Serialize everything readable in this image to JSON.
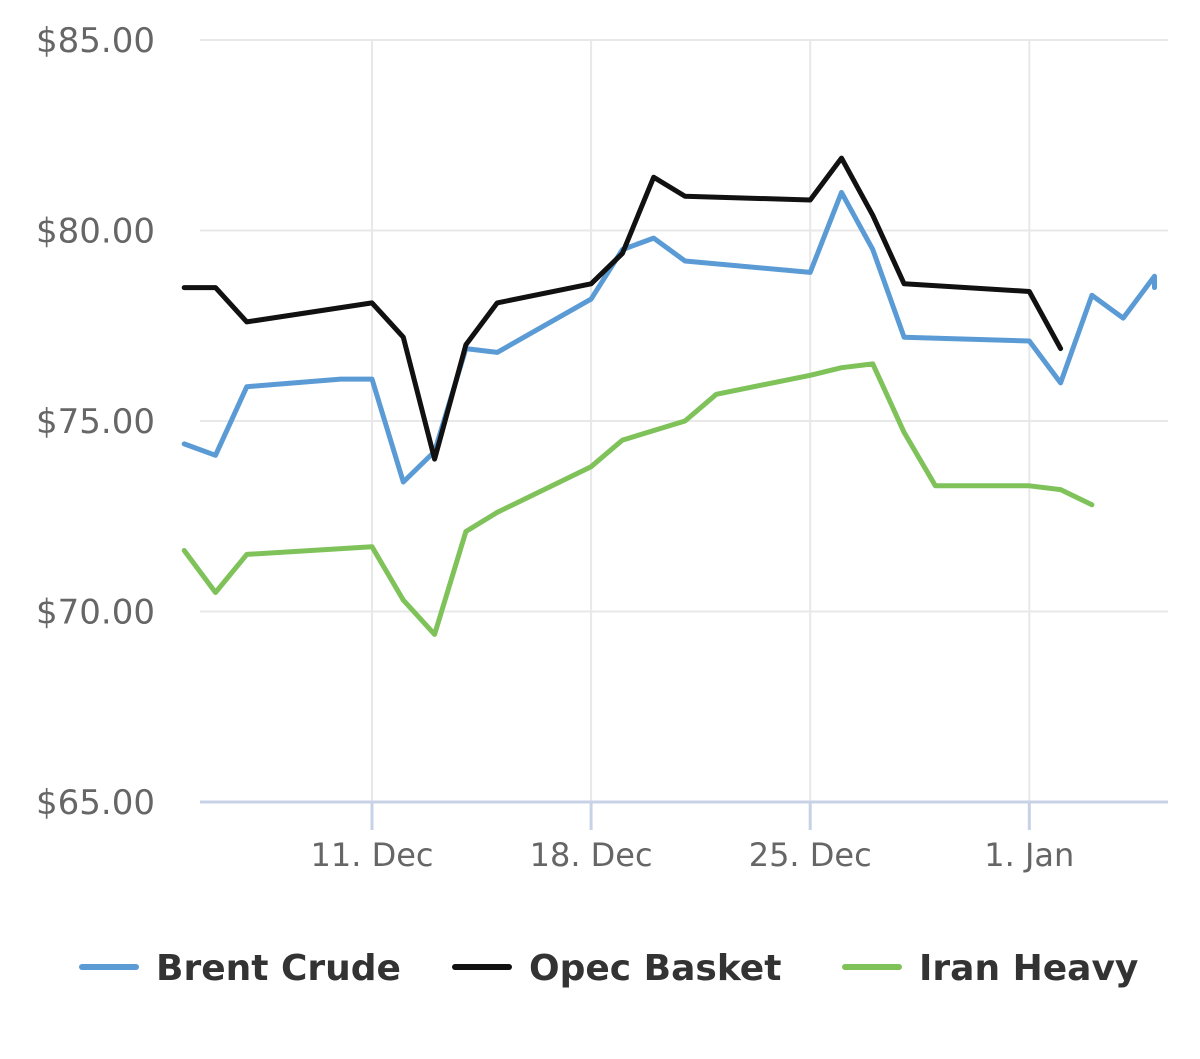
{
  "chart_data": {
    "type": "line",
    "title": "",
    "xlabel": "",
    "ylabel": "",
    "ylim": [
      65,
      85
    ],
    "y_ticks": [
      85,
      80,
      75,
      70,
      65
    ],
    "y_tick_labels": [
      "$85.00",
      "$80.00",
      "$75.00",
      "$70.00",
      "$65.00"
    ],
    "x_range": [
      "2017-12-05",
      "2018-01-04"
    ],
    "x_ticks": [
      "2017-12-11",
      "2017-12-18",
      "2017-12-25",
      "2018-01-01"
    ],
    "x_tick_labels": [
      "11. Dec",
      "18. Dec",
      "25. Dec",
      "1. Jan"
    ],
    "grid": true,
    "legend_position": "bottom",
    "series": [
      {
        "name": "Brent Crude",
        "color": "#5b9bd5",
        "points": [
          [
            "2017-12-05",
            74.4
          ],
          [
            "2017-12-06",
            74.1
          ],
          [
            "2017-12-07",
            75.9
          ],
          [
            "2017-12-10",
            76.1
          ],
          [
            "2017-12-11",
            76.1
          ],
          [
            "2017-12-12",
            73.4
          ],
          [
            "2017-12-13",
            74.2
          ],
          [
            "2017-12-14",
            76.9
          ],
          [
            "2017-12-15",
            76.8
          ],
          [
            "2017-12-18",
            78.2
          ],
          [
            "2017-12-19",
            79.5
          ],
          [
            "2017-12-20",
            79.8
          ],
          [
            "2017-12-21",
            79.2
          ],
          [
            "2017-12-25",
            78.9
          ],
          [
            "2017-12-26",
            81.0
          ],
          [
            "2017-12-27",
            79.5
          ],
          [
            "2017-12-28",
            77.2
          ],
          [
            "2018-01-01",
            77.1
          ],
          [
            "2018-01-02",
            76.0
          ],
          [
            "2018-01-03",
            78.3
          ],
          [
            "2018-01-04",
            77.7
          ],
          [
            "2018-01-05",
            78.8
          ],
          [
            "2018-01-05",
            78.5
          ]
        ]
      },
      {
        "name": "Opec Basket",
        "color": "#111111",
        "points": [
          [
            "2017-12-05",
            78.5
          ],
          [
            "2017-12-06",
            78.5
          ],
          [
            "2017-12-07",
            77.6
          ],
          [
            "2017-12-11",
            78.1
          ],
          [
            "2017-12-12",
            77.2
          ],
          [
            "2017-12-13",
            74.0
          ],
          [
            "2017-12-14",
            77.0
          ],
          [
            "2017-12-15",
            78.1
          ],
          [
            "2017-12-18",
            78.6
          ],
          [
            "2017-12-19",
            79.4
          ],
          [
            "2017-12-20",
            81.4
          ],
          [
            "2017-12-21",
            80.9
          ],
          [
            "2017-12-25",
            80.8
          ],
          [
            "2017-12-26",
            81.9
          ],
          [
            "2017-12-27",
            80.4
          ],
          [
            "2017-12-28",
            78.6
          ],
          [
            "2018-01-01",
            78.4
          ],
          [
            "2018-01-02",
            76.9
          ]
        ]
      },
      {
        "name": "Iran Heavy",
        "color": "#7fc25a",
        "points": [
          [
            "2017-12-05",
            71.6
          ],
          [
            "2017-12-06",
            70.5
          ],
          [
            "2017-12-07",
            71.5
          ],
          [
            "2017-12-11",
            71.7
          ],
          [
            "2017-12-12",
            70.3
          ],
          [
            "2017-12-13",
            69.4
          ],
          [
            "2017-12-14",
            72.1
          ],
          [
            "2017-12-15",
            72.6
          ],
          [
            "2017-12-18",
            73.8
          ],
          [
            "2017-12-19",
            74.5
          ],
          [
            "2017-12-21",
            75.0
          ],
          [
            "2017-12-22",
            75.7
          ],
          [
            "2017-12-25",
            76.2
          ],
          [
            "2017-12-26",
            76.4
          ],
          [
            "2017-12-27",
            76.5
          ],
          [
            "2017-12-28",
            74.7
          ],
          [
            "2017-12-29",
            73.3
          ],
          [
            "2018-01-01",
            73.3
          ],
          [
            "2018-01-02",
            73.2
          ],
          [
            "2018-01-03",
            72.8
          ]
        ]
      }
    ]
  }
}
